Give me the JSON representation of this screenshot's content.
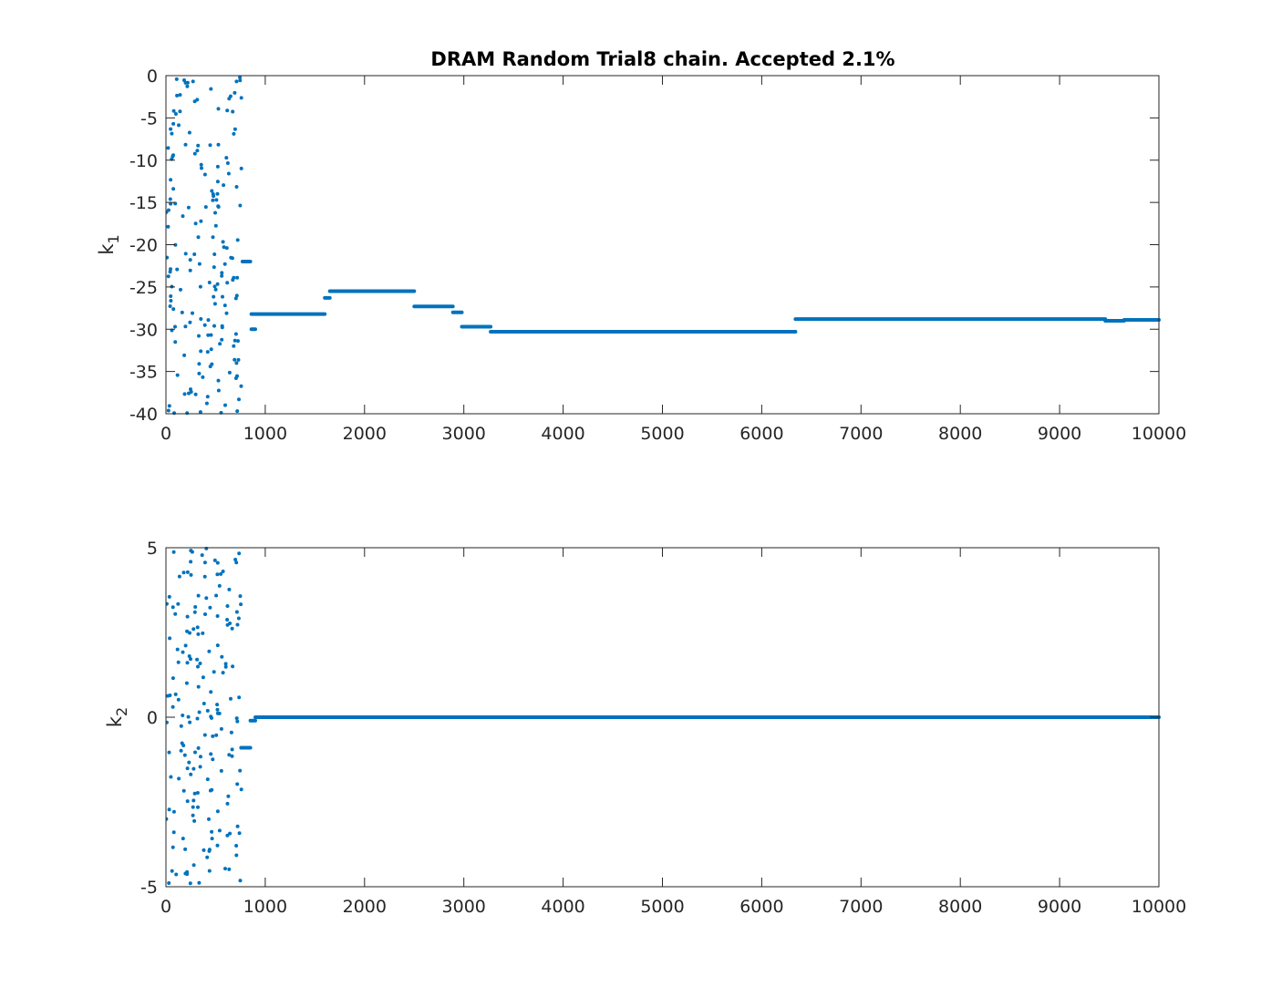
{
  "figure": {
    "title": "DRAM Random Trial8 chain. Accepted 2.1%"
  },
  "chart_data": [
    {
      "type": "scatter",
      "title": "DRAM Random Trial8 chain. Accepted 2.1%",
      "ylabel_main": "k",
      "ylabel_sub": "1",
      "xlim": [
        0,
        10000
      ],
      "ylim": [
        -40,
        0
      ],
      "xticks": [
        0,
        1000,
        2000,
        3000,
        4000,
        5000,
        6000,
        7000,
        8000,
        9000,
        10000
      ],
      "yticks": [
        0,
        -5,
        -10,
        -15,
        -20,
        -25,
        -30,
        -35,
        -40
      ],
      "color": "#0072BD",
      "grid": false,
      "scatter_range": [
        0,
        760
      ],
      "scatter_ylim": [
        -40,
        0
      ],
      "scatter_count": 180,
      "plateaus": [
        {
          "x": [
            770,
            850
          ],
          "y": -22.0
        },
        {
          "x": [
            860,
            900
          ],
          "y": -30.0
        },
        {
          "x": [
            860,
            1600
          ],
          "y": -28.2
        },
        {
          "x": [
            1600,
            1650
          ],
          "y": -26.3
        },
        {
          "x": [
            1650,
            2500
          ],
          "y": -25.5
        },
        {
          "x": [
            2500,
            2890
          ],
          "y": -27.3
        },
        {
          "x": [
            2890,
            2980
          ],
          "y": -28.0
        },
        {
          "x": [
            2980,
            3270
          ],
          "y": -29.7
        },
        {
          "x": [
            3270,
            6340
          ],
          "y": -30.3
        },
        {
          "x": [
            6340,
            9460
          ],
          "y": -28.8
        },
        {
          "x": [
            9460,
            9650
          ],
          "y": -29.0
        },
        {
          "x": [
            9650,
            10000
          ],
          "y": -28.9
        }
      ]
    },
    {
      "type": "scatter",
      "title": "",
      "ylabel_main": "k",
      "ylabel_sub": "2",
      "xlim": [
        0,
        10000
      ],
      "ylim": [
        -5,
        5
      ],
      "xticks": [
        0,
        1000,
        2000,
        3000,
        4000,
        5000,
        6000,
        7000,
        8000,
        9000,
        10000
      ],
      "yticks": [
        5,
        0,
        -5
      ],
      "color": "#0072BD",
      "grid": false,
      "scatter_range": [
        0,
        760
      ],
      "scatter_ylim": [
        -5,
        5
      ],
      "scatter_count": 180,
      "plateaus": [
        {
          "x": [
            760,
            850
          ],
          "y": -0.9
        },
        {
          "x": [
            850,
            900
          ],
          "y": -0.1
        },
        {
          "x": [
            900,
            10000
          ],
          "y": 0.0
        }
      ]
    }
  ]
}
